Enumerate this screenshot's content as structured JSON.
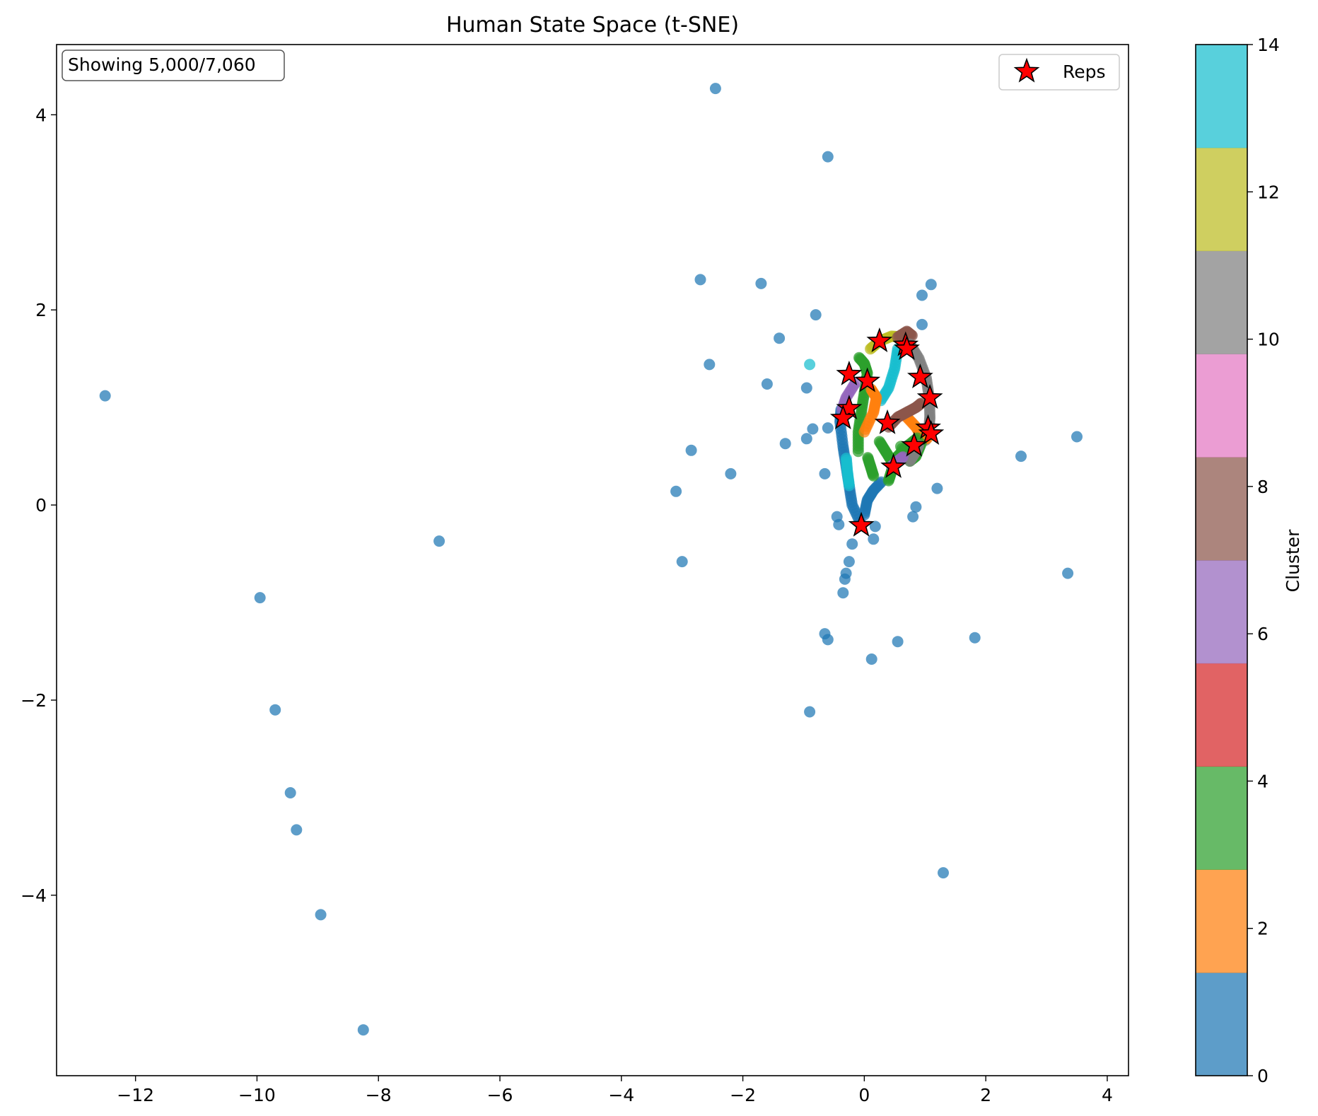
{
  "chart_data": {
    "type": "scatter",
    "title": "Human State Space (t-SNE)",
    "xlabel": "",
    "ylabel": "",
    "xlim": [
      -13.3,
      4.35
    ],
    "ylim": [
      -5.85,
      4.72
    ],
    "xticks": [
      -12,
      -10,
      -8,
      -6,
      -4,
      -2,
      0,
      2,
      4
    ],
    "yticks": [
      -4,
      -2,
      0,
      2,
      4
    ],
    "xtick_labels": [
      "−12",
      "−10",
      "−8",
      "−6",
      "−4",
      "−2",
      "0",
      "2",
      "4"
    ],
    "ytick_labels": [
      "−4",
      "−2",
      "0",
      "2",
      "4"
    ],
    "grid": false,
    "annotation": "Showing 5,000/7,060",
    "legend": {
      "position": "top-right",
      "entries": [
        "Reps"
      ]
    },
    "colorbar": {
      "label": "Cluster",
      "min": 0,
      "max": 14,
      "ticks": [
        0,
        2,
        4,
        6,
        8,
        10,
        12,
        14
      ],
      "tick_labels": [
        "0",
        "2",
        "4",
        "6",
        "8",
        "10",
        "12",
        "14"
      ],
      "colors": [
        "#1f77b4",
        "#ff7f0e",
        "#2ca02c",
        "#d62728",
        "#9467bd",
        "#8c564b",
        "#e377c2",
        "#7f7f7f",
        "#bcbd22",
        "#17becf"
      ]
    },
    "outliers": [
      {
        "x": -12.5,
        "y": 1.12,
        "c": 0
      },
      {
        "x": -7.0,
        "y": -0.37,
        "c": 0
      },
      {
        "x": -9.95,
        "y": -0.95,
        "c": 0
      },
      {
        "x": -9.7,
        "y": -2.1,
        "c": 0
      },
      {
        "x": -9.45,
        "y": -2.95,
        "c": 0
      },
      {
        "x": -9.35,
        "y": -3.33,
        "c": 0
      },
      {
        "x": -8.95,
        "y": -4.2,
        "c": 0
      },
      {
        "x": -8.25,
        "y": -5.38,
        "c": 0
      },
      {
        "x": -2.45,
        "y": 4.27,
        "c": 0
      },
      {
        "x": -0.6,
        "y": 3.57,
        "c": 0
      },
      {
        "x": -2.7,
        "y": 2.31,
        "c": 0
      },
      {
        "x": -1.7,
        "y": 2.27,
        "c": 0
      },
      {
        "x": -0.8,
        "y": 1.95,
        "c": 0
      },
      {
        "x": -1.4,
        "y": 1.71,
        "c": 0
      },
      {
        "x": -2.55,
        "y": 1.44,
        "c": 0
      },
      {
        "x": -1.6,
        "y": 1.24,
        "c": 0
      },
      {
        "x": -0.95,
        "y": 1.2,
        "c": 0
      },
      {
        "x": -0.9,
        "y": 1.44,
        "c": 14
      },
      {
        "x": -2.85,
        "y": 0.56,
        "c": 0
      },
      {
        "x": -1.3,
        "y": 0.63,
        "c": 0
      },
      {
        "x": -0.95,
        "y": 0.68,
        "c": 0
      },
      {
        "x": -0.85,
        "y": 0.78,
        "c": 0
      },
      {
        "x": -0.6,
        "y": 0.79,
        "c": 0
      },
      {
        "x": -2.2,
        "y": 0.32,
        "c": 0
      },
      {
        "x": -0.65,
        "y": 0.32,
        "c": 0
      },
      {
        "x": -3.1,
        "y": 0.14,
        "c": 0
      },
      {
        "x": -3.0,
        "y": -0.58,
        "c": 0
      },
      {
        "x": -0.65,
        "y": -1.32,
        "c": 0
      },
      {
        "x": -0.6,
        "y": -1.38,
        "c": 0
      },
      {
        "x": 0.12,
        "y": -1.58,
        "c": 0
      },
      {
        "x": 0.55,
        "y": -1.4,
        "c": 0
      },
      {
        "x": -0.9,
        "y": -2.12,
        "c": 0
      },
      {
        "x": 1.3,
        "y": -3.77,
        "c": 0
      },
      {
        "x": 1.82,
        "y": -1.36,
        "c": 0
      },
      {
        "x": 3.35,
        "y": -0.7,
        "c": 0
      },
      {
        "x": 2.58,
        "y": 0.5,
        "c": 0
      },
      {
        "x": 3.5,
        "y": 0.7,
        "c": 0
      },
      {
        "x": 1.2,
        "y": 0.17,
        "c": 0
      },
      {
        "x": 0.8,
        "y": -0.12,
        "c": 0
      },
      {
        "x": 0.85,
        "y": -0.02,
        "c": 0
      },
      {
        "x": 0.95,
        "y": 1.85,
        "c": 0
      },
      {
        "x": 0.95,
        "y": 2.15,
        "c": 0
      },
      {
        "x": 1.1,
        "y": 2.26,
        "c": 0
      },
      {
        "x": -0.25,
        "y": -0.58,
        "c": 0
      },
      {
        "x": -0.3,
        "y": -0.7,
        "c": 0
      },
      {
        "x": -0.32,
        "y": -0.76,
        "c": 0
      },
      {
        "x": -0.35,
        "y": -0.9,
        "c": 0
      },
      {
        "x": -0.2,
        "y": -0.4,
        "c": 0
      },
      {
        "x": -0.45,
        "y": -0.12,
        "c": 0
      },
      {
        "x": -0.42,
        "y": -0.2,
        "c": 0
      },
      {
        "x": 0.15,
        "y": -0.35,
        "c": 0
      },
      {
        "x": 0.18,
        "y": -0.22,
        "c": 0
      }
    ],
    "cluster_bands": [
      {
        "c": 0,
        "points": [
          [
            -0.05,
            -0.2
          ],
          [
            -0.2,
            0.0
          ],
          [
            -0.25,
            0.2
          ],
          [
            -0.3,
            0.4
          ],
          [
            -0.35,
            0.6
          ],
          [
            -0.4,
            0.85
          ],
          [
            -0.38,
            1.0
          ]
        ]
      },
      {
        "c": 0,
        "points": [
          [
            0.0,
            -0.1
          ],
          [
            0.05,
            0.05
          ],
          [
            0.15,
            0.15
          ],
          [
            0.3,
            0.25
          ]
        ]
      },
      {
        "c": 4,
        "points": [
          [
            -0.1,
            0.55
          ],
          [
            -0.1,
            0.75
          ],
          [
            -0.05,
            0.95
          ],
          [
            0.0,
            1.15
          ],
          [
            0.05,
            1.35
          ],
          [
            0.0,
            1.45
          ],
          [
            -0.1,
            1.52
          ]
        ]
      },
      {
        "c": 6,
        "points": [
          [
            -0.15,
            1.25
          ],
          [
            -0.3,
            1.1
          ],
          [
            -0.38,
            0.95
          ]
        ]
      },
      {
        "c": 12,
        "points": [
          [
            0.1,
            1.6
          ],
          [
            0.25,
            1.68
          ],
          [
            0.45,
            1.73
          ],
          [
            0.65,
            1.72
          ]
        ]
      },
      {
        "c": 8,
        "points": [
          [
            0.55,
            1.72
          ],
          [
            0.7,
            1.78
          ],
          [
            0.8,
            1.73
          ]
        ]
      },
      {
        "c": 10,
        "points": [
          [
            0.75,
            1.65
          ],
          [
            0.9,
            1.5
          ],
          [
            1.02,
            1.3
          ],
          [
            1.07,
            1.1
          ],
          [
            1.08,
            0.9
          ],
          [
            1.06,
            0.75
          ],
          [
            1.0,
            0.65
          ]
        ]
      },
      {
        "c": 14,
        "points": [
          [
            0.55,
            1.6
          ],
          [
            0.5,
            1.4
          ],
          [
            0.4,
            1.2
          ],
          [
            0.25,
            1.05
          ]
        ]
      },
      {
        "c": 2,
        "points": [
          [
            0.0,
            0.75
          ],
          [
            0.15,
            0.95
          ],
          [
            0.2,
            1.1
          ],
          [
            0.1,
            1.2
          ]
        ]
      },
      {
        "c": 2,
        "points": [
          [
            0.7,
            0.9
          ],
          [
            0.85,
            0.8
          ],
          [
            0.95,
            0.7
          ],
          [
            1.05,
            0.68
          ]
        ]
      },
      {
        "c": 4,
        "points": [
          [
            0.25,
            0.65
          ],
          [
            0.35,
            0.55
          ],
          [
            0.45,
            0.45
          ],
          [
            0.55,
            0.5
          ],
          [
            0.7,
            0.6
          ],
          [
            0.9,
            0.7
          ]
        ]
      },
      {
        "c": 4,
        "points": [
          [
            0.6,
            0.6
          ],
          [
            0.75,
            0.45
          ],
          [
            0.85,
            0.5
          ],
          [
            0.95,
            0.65
          ]
        ]
      },
      {
        "c": 8,
        "points": [
          [
            0.4,
            0.8
          ],
          [
            0.55,
            0.9
          ],
          [
            0.7,
            0.95
          ],
          [
            0.85,
            1.0
          ],
          [
            0.95,
            1.05
          ]
        ]
      },
      {
        "c": 10,
        "points": [
          [
            0.75,
            0.45
          ],
          [
            0.85,
            0.55
          ],
          [
            0.9,
            0.62
          ]
        ]
      },
      {
        "c": 4,
        "points": [
          [
            0.4,
            0.25
          ],
          [
            0.45,
            0.35
          ],
          [
            0.5,
            0.45
          ]
        ]
      },
      {
        "c": 6,
        "points": [
          [
            0.45,
            0.4
          ],
          [
            0.55,
            0.45
          ],
          [
            0.65,
            0.5
          ]
        ]
      },
      {
        "c": 14,
        "points": [
          [
            -0.25,
            0.2
          ],
          [
            -0.28,
            0.35
          ],
          [
            -0.3,
            0.5
          ]
        ]
      },
      {
        "c": 4,
        "points": [
          [
            0.15,
            0.3
          ],
          [
            0.1,
            0.4
          ],
          [
            0.05,
            0.5
          ]
        ]
      }
    ],
    "reps": [
      {
        "x": 0.25,
        "y": 1.68
      },
      {
        "x": 0.68,
        "y": 1.64
      },
      {
        "x": 0.7,
        "y": 1.6
      },
      {
        "x": -0.25,
        "y": 1.34
      },
      {
        "x": 0.05,
        "y": 1.27
      },
      {
        "x": 0.92,
        "y": 1.31
      },
      {
        "x": 1.08,
        "y": 1.1
      },
      {
        "x": -0.25,
        "y": 0.99
      },
      {
        "x": -0.35,
        "y": 0.89
      },
      {
        "x": 0.38,
        "y": 0.84
      },
      {
        "x": 1.05,
        "y": 0.79
      },
      {
        "x": 1.1,
        "y": 0.73
      },
      {
        "x": 0.82,
        "y": 0.61
      },
      {
        "x": 0.48,
        "y": 0.39
      },
      {
        "x": -0.05,
        "y": -0.21
      }
    ]
  }
}
